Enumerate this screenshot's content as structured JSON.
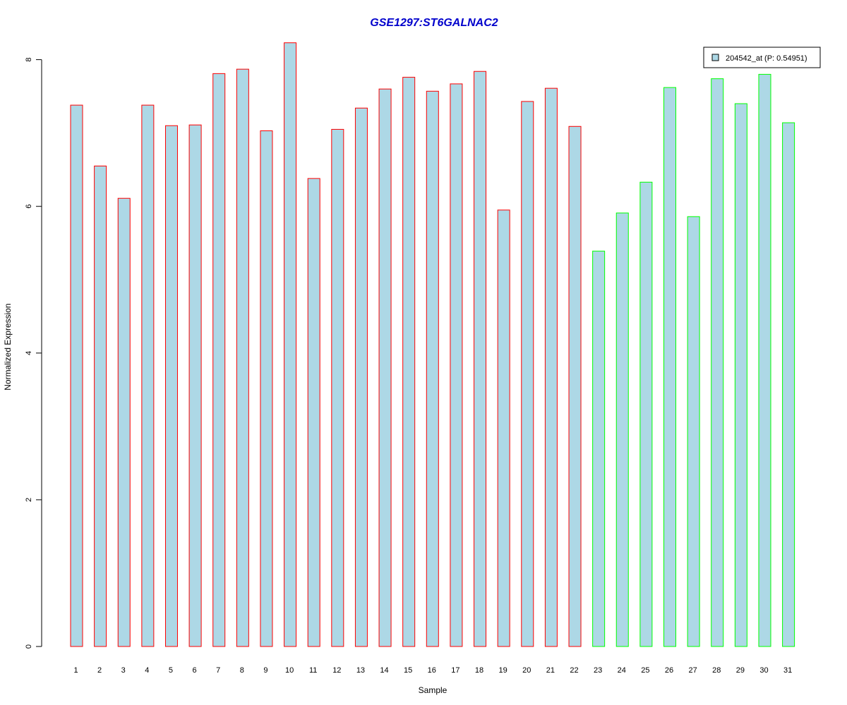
{
  "chart_data": {
    "type": "bar",
    "title": "GSE1297:ST6GALNAC2",
    "xlabel": "Sample",
    "ylabel": "Normalized Expression",
    "ylim": [
      0,
      8.25
    ],
    "yticks": [
      0,
      2,
      4,
      6,
      8
    ],
    "grid": false,
    "legend_position": "top-right",
    "colors": {
      "title": "#0000cc",
      "bar_fill": "#add8e6",
      "group_a_border": "#ff0000",
      "group_b_border": "#00ff00",
      "axis": "#000000"
    },
    "categories": [
      "1",
      "2",
      "3",
      "4",
      "5",
      "6",
      "7",
      "8",
      "9",
      "10",
      "11",
      "12",
      "13",
      "14",
      "15",
      "16",
      "17",
      "18",
      "19",
      "20",
      "21",
      "22",
      "23",
      "24",
      "25",
      "26",
      "27",
      "28",
      "29",
      "30",
      "31"
    ],
    "series": [
      {
        "name": "204542_at (P: 0.54951)",
        "values": [
          7.38,
          6.55,
          6.11,
          7.38,
          7.1,
          7.11,
          7.81,
          7.87,
          7.03,
          8.23,
          6.38,
          7.05,
          7.34,
          7.6,
          7.76,
          7.57,
          7.67,
          7.84,
          5.95,
          7.43,
          7.61,
          7.09,
          5.39,
          5.91,
          6.33,
          7.62,
          5.86,
          7.74,
          7.4,
          7.8,
          7.14
        ],
        "border_groups": [
          "a",
          "a",
          "a",
          "a",
          "a",
          "a",
          "a",
          "a",
          "a",
          "a",
          "a",
          "a",
          "a",
          "a",
          "a",
          "a",
          "a",
          "a",
          "a",
          "a",
          "a",
          "a",
          "b",
          "b",
          "b",
          "b",
          "b",
          "b",
          "b",
          "b",
          "b"
        ]
      }
    ]
  }
}
